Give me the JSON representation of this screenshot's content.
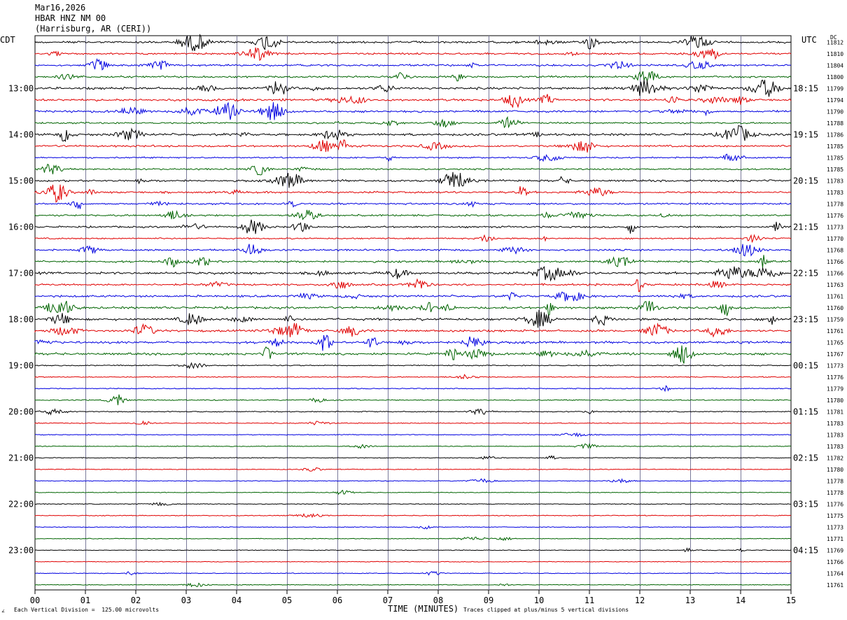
{
  "header": {
    "date": "Mar16,2026",
    "station": "HBAR HNZ NM 00",
    "location": "(Harrisburg, AR (CERI))"
  },
  "left_tz": "CDT",
  "right_tz": "UTC",
  "dc_label": "DC",
  "footer": {
    "scale_note": "Each Vertical Division =  125.00 microvolts",
    "clip_note": "Traces clipped at plus/minus 5 vertical divisions",
    "corner_mark": "∠"
  },
  "chart_data": {
    "type": "line",
    "title": "",
    "xlabel": "TIME (MINUTES)",
    "ylabel": "",
    "x_ticks": [
      "00",
      "01",
      "02",
      "03",
      "04",
      "05",
      "06",
      "07",
      "08",
      "09",
      "10",
      "11",
      "12",
      "13",
      "14",
      "15"
    ],
    "xlim": [
      0,
      15
    ],
    "grid": true,
    "trace_colors": [
      "#000000",
      "#e00000",
      "#0000e0",
      "#006400"
    ],
    "left_time_labels": [
      "13:00",
      "14:00",
      "15:00",
      "16:00",
      "17:00",
      "18:00",
      "19:00",
      "20:00",
      "21:00",
      "22:00",
      "23:00"
    ],
    "right_time_labels": [
      "18:15",
      "19:15",
      "20:15",
      "21:15",
      "22:15",
      "23:15",
      "00:15",
      "01:15",
      "02:15",
      "03:15",
      "04:15"
    ],
    "dc_offsets": [
      "11812",
      "11810",
      "11804",
      "11800",
      "11799",
      "11794",
      "11790",
      "11788",
      "11786",
      "11785",
      "11785",
      "11785",
      "11783",
      "11783",
      "11778",
      "11776",
      "11773",
      "11770",
      "11768",
      "11766",
      "11766",
      "11763",
      "11761",
      "11760",
      "11759",
      "11761",
      "11765",
      "11767",
      "11773",
      "11776",
      "11779",
      "11780",
      "11781",
      "11783",
      "11783",
      "11783",
      "11782",
      "11780",
      "11778",
      "11778",
      "11776",
      "11775",
      "11773",
      "11771",
      "11769",
      "11766",
      "11764",
      "11761"
    ],
    "trace_activity": [
      0.9,
      0.7,
      0.8,
      0.8,
      1.0,
      1.0,
      0.9,
      0.6,
      1.0,
      0.8,
      0.5,
      0.6,
      0.8,
      0.8,
      0.7,
      0.7,
      0.7,
      0.5,
      0.7,
      0.8,
      1.0,
      0.8,
      0.9,
      1.0,
      1.0,
      0.9,
      1.0,
      1.0,
      0.3,
      0.25,
      0.2,
      0.3,
      0.25,
      0.2,
      0.15,
      0.12,
      0.12,
      0.1,
      0.08,
      0.08,
      0.15,
      0.15,
      0.1,
      0.08,
      0.08,
      0.08,
      0.12,
      0.1
    ]
  }
}
